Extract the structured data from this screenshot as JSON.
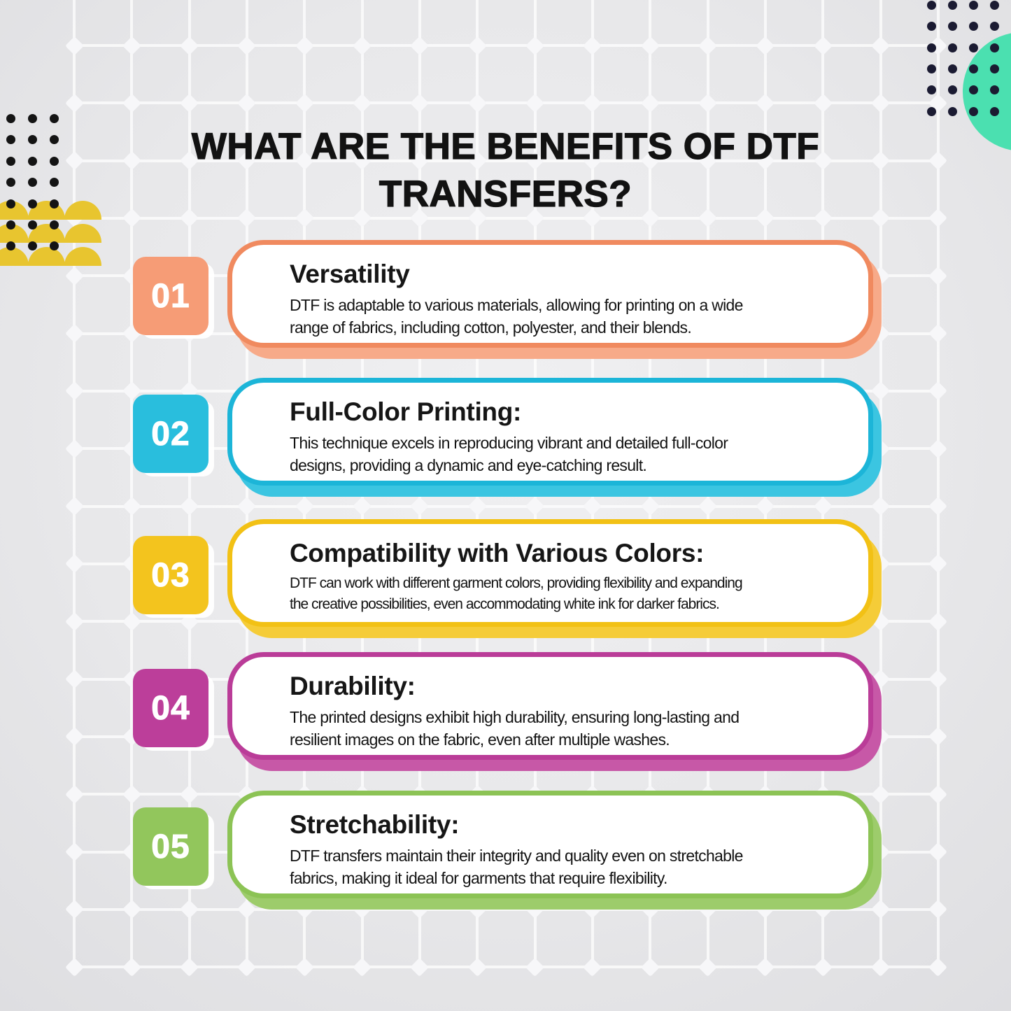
{
  "title_lines": [
    "WHAT ARE THE BENEFITS OF DTF",
    "TRANSFERS?"
  ],
  "cards": [
    {
      "number": "01",
      "heading": "Versatility",
      "body": "DTF is adaptable to various materials, allowing for printing on a wide\nrange of fabrics, including cotton, polyester, and their blends.",
      "colors": {
        "border": "#F08A5F",
        "badge": "#F69C76",
        "shadow": "#F7AA89"
      }
    },
    {
      "number": "02",
      "heading": "Full-Color Printing:",
      "body": "This technique excels in reproducing vibrant and detailed full-color\ndesigns, providing a dynamic and eye-catching result.",
      "colors": {
        "border": "#1CB5D8",
        "badge": "#29BEDD",
        "shadow": "#3BC5E1"
      }
    },
    {
      "number": "03",
      "heading": "Compatibility with Various Colors:",
      "body": "DTF can work with different garment colors, providing flexibility and expanding\nthe creative possibilities, even accommodating white ink for darker fabrics.",
      "colors": {
        "border": "#F2C115",
        "badge": "#F3C41E",
        "shadow": "#F5CC38"
      }
    },
    {
      "number": "04",
      "heading": "Durability:",
      "body": "The printed designs exhibit high durability, ensuring long-lasting and\nresilient images on the fabric, even after multiple washes.",
      "colors": {
        "border": "#BA3C98",
        "badge": "#BC3E9A",
        "shadow": "#C758A7"
      }
    },
    {
      "number": "05",
      "heading": "Stretchability:",
      "body": "DTF transfers maintain their integrity and quality even on stretchable\nfabrics, making it ideal for garments that require flexibility.",
      "colors": {
        "border": "#8CC355",
        "badge": "#92C65C",
        "shadow": "#9DCC6B"
      }
    }
  ],
  "decor": {
    "dots_top_left": {
      "rows": 7,
      "cols": 3,
      "color": "#141414"
    },
    "dots_top_right": {
      "rows": 6,
      "cols": 4,
      "color": "#1B1B32"
    },
    "teal_circle": {
      "color": "#4BE0B0"
    },
    "yellow_semicircles": {
      "rows": 3,
      "cols": 3,
      "color": "#E8C52F"
    }
  }
}
